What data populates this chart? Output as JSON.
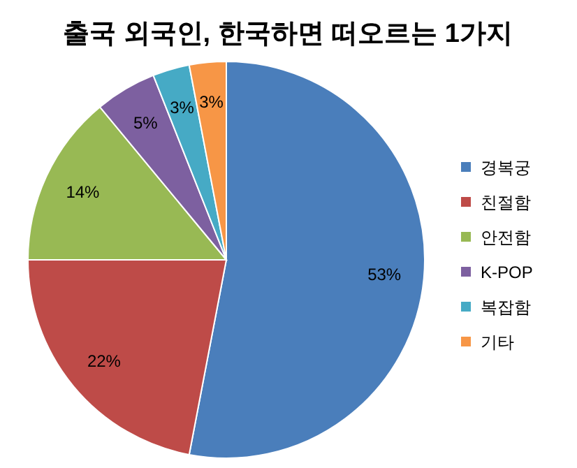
{
  "chart_data": {
    "type": "pie",
    "title": "출국 외국인, 한국하면 떠오르는 1가지",
    "categories": [
      "경복궁",
      "친절함",
      "안전함",
      "K-POP",
      "복잡함",
      "기타"
    ],
    "values": [
      53,
      22,
      14,
      5,
      3,
      3
    ],
    "colors": [
      "#4a7ebb",
      "#be4b48",
      "#98b954",
      "#7d60a0",
      "#46aac5",
      "#f79646"
    ],
    "value_labels": [
      "53%",
      "22%",
      "14%",
      "5%",
      "3%",
      "3%"
    ],
    "legend": "right"
  }
}
